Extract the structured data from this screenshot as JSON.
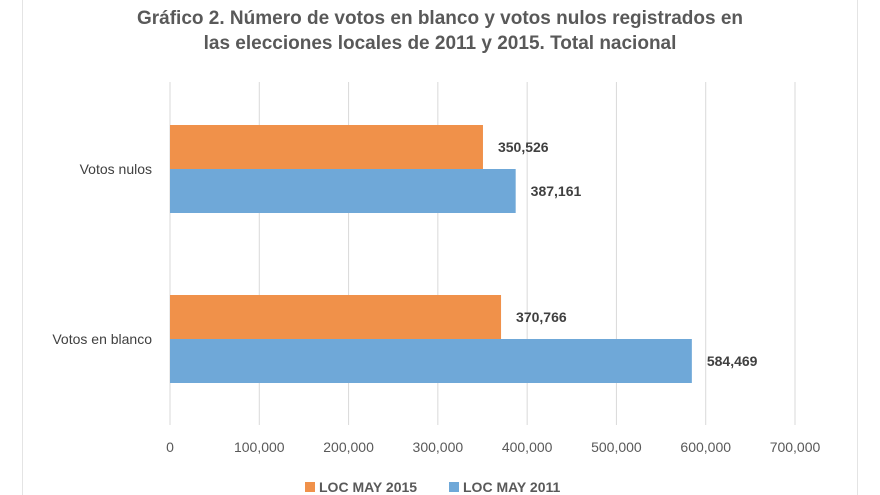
{
  "chart_data": {
    "type": "bar",
    "orientation": "horizontal",
    "title_line1": "Gráfico 2. Número de votos en blanco y votos nulos registrados en",
    "title_line2": "las elecciones locales de 2011 y 2015. Total nacional",
    "categories": [
      "Votos nulos",
      "Votos en blanco"
    ],
    "series": [
      {
        "name": "LOC MAY 2015",
        "color": "#f0914a",
        "values": [
          350526,
          370766
        ],
        "labels": [
          "350,526",
          "370,766"
        ]
      },
      {
        "name": "LOC MAY 2011",
        "color": "#6fa8d8",
        "values": [
          387161,
          584469
        ],
        "labels": [
          "387,161",
          "584,469"
        ]
      }
    ],
    "xlim": [
      0,
      700000
    ],
    "xticks": [
      0,
      100000,
      200000,
      300000,
      400000,
      500000,
      600000,
      700000
    ],
    "xtick_labels": [
      "0",
      "100,000",
      "200,000",
      "300,000",
      "400,000",
      "500,000",
      "600,000",
      "700,000"
    ],
    "grid": true,
    "legend_position": "bottom"
  }
}
